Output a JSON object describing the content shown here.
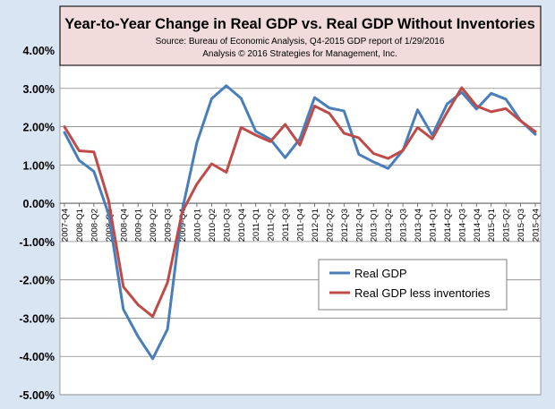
{
  "chart_data": {
    "type": "line",
    "title": "Year-to-Year Change in Real GDP vs. Real GDP Without Inventories",
    "subtitle_lines": [
      "Source: Bureau of Economic Analysis, Q4-2015 GDP report of 1/29/2016",
      "Analysis © 2016 Strategies for Management, Inc."
    ],
    "xlabel": "",
    "ylabel": "",
    "ylim": [
      -5,
      4
    ],
    "yticks": [
      4,
      3,
      2,
      1,
      0,
      -1,
      -2,
      -3,
      -4,
      -5
    ],
    "ytick_labels": [
      "4.00%",
      "3.00%",
      "2.00%",
      "1.00%",
      "0.00%",
      "-1.00%",
      "-2.00%",
      "-3.00%",
      "-4.00%",
      "-5.00%"
    ],
    "grid": true,
    "legend_position": "lower-right",
    "categories": [
      "2007-Q4",
      "2008-Q1",
      "2008-Q2",
      "2008-Q3",
      "2008-Q4",
      "2009-Q1",
      "2009-Q2",
      "2009-Q3",
      "2009-Q4",
      "2010-Q1",
      "2010-Q2",
      "2010-Q3",
      "2010-Q4",
      "2011-Q1",
      "2011-Q2",
      "2011-Q3",
      "2011-Q4",
      "2012-Q1",
      "2012-Q2",
      "2012-Q3",
      "2012-Q4",
      "2013-Q1",
      "2013-Q2",
      "2013-Q3",
      "2013-Q4",
      "2014-Q1",
      "2014-Q2",
      "2014-Q3",
      "2014-Q4",
      "2015-Q1",
      "2015-Q2",
      "2015-Q3",
      "2015-Q4"
    ],
    "series": [
      {
        "name": "Real GDP",
        "color": "#4a7ebb",
        "values": [
          1.85,
          1.12,
          0.83,
          -0.28,
          -2.77,
          -3.48,
          -4.06,
          -3.29,
          -0.19,
          1.58,
          2.73,
          3.07,
          2.74,
          1.88,
          1.67,
          1.19,
          1.68,
          2.76,
          2.49,
          2.41,
          1.28,
          1.08,
          0.91,
          1.38,
          2.44,
          1.78,
          2.59,
          2.9,
          2.46,
          2.87,
          2.72,
          2.16,
          1.8
        ]
      },
      {
        "name": "Real GDP less inventories",
        "color": "#be4b48",
        "values": [
          2.0,
          1.37,
          1.34,
          0.07,
          -2.18,
          -2.65,
          -2.96,
          -2.07,
          -0.23,
          0.5,
          1.03,
          0.81,
          1.98,
          1.78,
          1.61,
          2.06,
          1.52,
          2.54,
          2.35,
          1.83,
          1.71,
          1.3,
          1.17,
          1.38,
          1.98,
          1.68,
          2.37,
          3.02,
          2.54,
          2.39,
          2.47,
          2.15,
          1.87
        ]
      }
    ]
  }
}
